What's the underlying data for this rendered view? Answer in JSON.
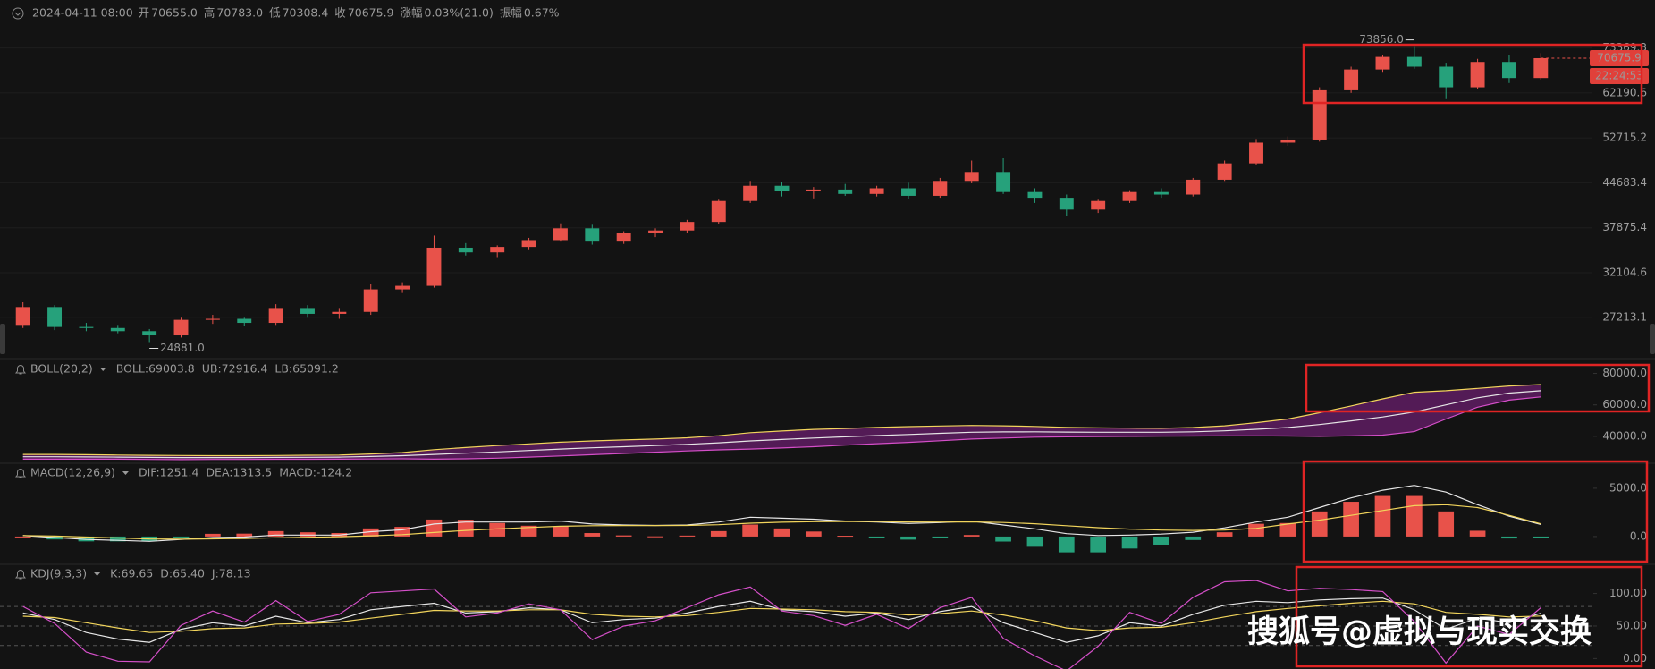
{
  "header": {
    "datetime": "2024-04-11 08:00",
    "fields": [
      {
        "label": "开",
        "value": "70655.0"
      },
      {
        "label": "高",
        "value": "70783.0"
      },
      {
        "label": "低",
        "value": "70308.4"
      },
      {
        "label": "收",
        "value": "70675.9"
      },
      {
        "label": "涨幅",
        "value": "0.03%(21.0)"
      },
      {
        "label": "振幅",
        "value": "0.67%"
      }
    ]
  },
  "watermark": "搜狐号@虚拟与现实交换",
  "chart_data": [
    {
      "type": "candlestick",
      "open": [
        26500,
        28300,
        26300,
        26200,
        25900,
        25500,
        27000,
        27100,
        26700,
        28200,
        27600,
        27800,
        30200,
        30600,
        35200,
        34600,
        35300,
        36200,
        37800,
        36000,
        37200,
        37500,
        38700,
        41800,
        44200,
        43300,
        43600,
        42900,
        43800,
        42600,
        45000,
        46500,
        43200,
        42300,
        40500,
        41800,
        43200,
        42800,
        45200,
        48000,
        51800,
        52400,
        62800,
        67800,
        71000,
        68500,
        63500,
        69700,
        65700
      ],
      "high": [
        28800,
        28500,
        26700,
        26500,
        26100,
        27300,
        27500,
        27300,
        28600,
        28500,
        28200,
        30800,
        31000,
        36800,
        35800,
        35500,
        36500,
        38500,
        38300,
        37400,
        37800,
        39000,
        42000,
        45000,
        44800,
        44000,
        44500,
        44200,
        44700,
        45500,
        48500,
        48900,
        43800,
        42800,
        42000,
        43500,
        43800,
        45500,
        48500,
        52500,
        53000,
        63500,
        68500,
        71500,
        73856,
        69500,
        70500,
        71500,
        72000
      ],
      "low": [
        26200,
        26000,
        25900,
        25700,
        24881,
        25300,
        26600,
        26400,
        26500,
        27300,
        27100,
        27500,
        29800,
        30400,
        34200,
        34000,
        35000,
        36000,
        35600,
        35700,
        36600,
        37200,
        38400,
        41500,
        42500,
        42200,
        42600,
        42500,
        42100,
        42300,
        44600,
        42900,
        41500,
        39500,
        40000,
        41500,
        42300,
        42500,
        45000,
        47800,
        51200,
        52000,
        62200,
        67000,
        68000,
        60800,
        63000,
        64500,
        65200
      ],
      "close": [
        28300,
        26300,
        26200,
        25900,
        25500,
        27000,
        27100,
        26700,
        28200,
        27600,
        27800,
        30200,
        30600,
        35200,
        34600,
        35300,
        36200,
        37800,
        36000,
        37200,
        37500,
        38700,
        41800,
        44200,
        43300,
        43600,
        42900,
        43800,
        42600,
        45000,
        46500,
        43200,
        42300,
        40500,
        41800,
        43200,
        42800,
        45200,
        48000,
        51800,
        52400,
        62800,
        67800,
        71000,
        68500,
        63500,
        69700,
        65700,
        70675.9
      ],
      "up_color": "#e8524a",
      "down_color": "#26a17b",
      "log_scale": true,
      "grid": true,
      "ylim": [
        23800,
        78000
      ],
      "yticks": [
        27213.1,
        32104.6,
        37875.4,
        44683.4,
        52715.2,
        62190.6,
        73369.3
      ],
      "annotations": [
        {
          "value": 73856,
          "label": "73856.0"
        },
        {
          "value": 24881,
          "label": "24881.0"
        }
      ],
      "last_price": 70675.9,
      "countdown": "22:24:53"
    },
    {
      "type": "band",
      "title": "BOLL(20,2)",
      "series": [
        {
          "name": "BOLL:69003.8",
          "color": "#e6e6e6",
          "values": [
            27000,
            27000,
            26900,
            26800,
            26600,
            26500,
            26500,
            26500,
            26600,
            26700,
            26800,
            27200,
            27700,
            28500,
            29300,
            30100,
            31000,
            31900,
            32700,
            33400,
            34100,
            34900,
            35900,
            37100,
            38000,
            38900,
            39700,
            40500,
            41200,
            41900,
            42600,
            42800,
            42900,
            42700,
            42600,
            42600,
            42600,
            42900,
            43500,
            44500,
            45600,
            47500,
            49800,
            52300,
            55500,
            60000,
            64500,
            67500,
            69003.8
          ]
        },
        {
          "name": "UB:72916.4",
          "color": "#f2d55c",
          "values": [
            28500,
            28500,
            28300,
            28100,
            27900,
            27800,
            27700,
            27700,
            27800,
            28000,
            28100,
            28800,
            29700,
            31500,
            32900,
            34100,
            35200,
            36300,
            37100,
            37700,
            38300,
            39100,
            40400,
            42300,
            43400,
            44400,
            45000,
            45700,
            46200,
            46600,
            46900,
            46700,
            46300,
            45700,
            45400,
            45200,
            45100,
            45600,
            46700,
            48700,
            51000,
            55000,
            59300,
            63800,
            68000,
            69000,
            70500,
            72000,
            72916.4
          ]
        },
        {
          "name": "LB:65091.2",
          "color": "#d44fc8",
          "values": [
            25500,
            25500,
            25500,
            25500,
            25300,
            25200,
            25300,
            25300,
            25400,
            25400,
            25500,
            25600,
            25700,
            25500,
            25700,
            26100,
            26800,
            27500,
            28300,
            29100,
            29900,
            30700,
            31400,
            31900,
            32600,
            33400,
            34400,
            35300,
            36200,
            37200,
            38300,
            38900,
            39500,
            39700,
            39800,
            40000,
            40100,
            40200,
            40300,
            40300,
            40200,
            40000,
            40300,
            40800,
            43000,
            51000,
            58500,
            63000,
            65091.2
          ]
        }
      ],
      "fill": "#6a1f6e",
      "ylim": [
        24000,
        86000
      ],
      "yticks": [
        {
          "value": 80000,
          "label": "80000.0"
        },
        {
          "value": 60000,
          "label": "60000.0"
        },
        {
          "value": 40000,
          "label": "40000.0"
        }
      ]
    },
    {
      "type": "macd",
      "title": "MACD(12,26,9)",
      "series": [
        {
          "name": "DIF:1251.4",
          "color": "#e6e6e6",
          "values": [
            100,
            -100,
            -300,
            -400,
            -500,
            -300,
            -100,
            -50,
            150,
            150,
            150,
            500,
            700,
            1300,
            1500,
            1500,
            1500,
            1600,
            1300,
            1200,
            1150,
            1200,
            1500,
            2000,
            1900,
            1800,
            1600,
            1500,
            1350,
            1450,
            1600,
            1200,
            800,
            300,
            100,
            150,
            250,
            450,
            900,
            1500,
            2000,
            3000,
            4000,
            4800,
            5300,
            4600,
            3300,
            2100,
            1251.4
          ]
        },
        {
          "name": "DEA:1313.5",
          "color": "#f2d55c",
          "values": [
            100,
            50,
            -50,
            -150,
            -250,
            -280,
            -240,
            -200,
            -130,
            -70,
            -30,
            80,
            200,
            420,
            630,
            800,
            940,
            1070,
            1120,
            1140,
            1140,
            1150,
            1220,
            1380,
            1480,
            1540,
            1560,
            1550,
            1510,
            1500,
            1520,
            1460,
            1330,
            1120,
            920,
            770,
            670,
            630,
            680,
            840,
            1300,
            1700,
            2200,
            2700,
            3200,
            3300,
            3000,
            2200,
            1313.5
          ]
        },
        {
          "name": "MACD:-124.2",
          "color": "#d44fc8",
          "values": [
            0,
            -300,
            -500,
            -500,
            -500,
            -40,
            280,
            300,
            560,
            440,
            360,
            840,
            1000,
            1760,
            1740,
            1400,
            1120,
            1060,
            360,
            120,
            20,
            100,
            560,
            1240,
            840,
            520,
            80,
            -100,
            -320,
            -100,
            160,
            -520,
            -1060,
            -1640,
            -1640,
            -1240,
            -840,
            -360,
            440,
            1320,
            1400,
            2600,
            3600,
            4200,
            4200,
            2600,
            600,
            -200,
            -124.2
          ]
        }
      ],
      "up_color": "#e8524a",
      "down_color": "#26a17b",
      "ylim": [
        -2600,
        7400
      ],
      "yticks": [
        {
          "value": 5000,
          "label": "5000.0"
        },
        {
          "value": 0,
          "label": "0.0"
        }
      ]
    },
    {
      "type": "kdj",
      "title": "KDJ(9,3,3)",
      "series": [
        {
          "name": "K:69.65",
          "color": "#e6e6e6",
          "values": [
            70,
            60,
            40,
            30,
            25,
            45,
            55,
            50,
            65,
            55,
            60,
            75,
            80,
            85,
            70,
            72,
            78,
            75,
            55,
            60,
            62,
            70,
            80,
            88,
            75,
            72,
            65,
            70,
            60,
            72,
            80,
            55,
            40,
            25,
            35,
            55,
            50,
            68,
            82,
            88,
            86,
            90,
            92,
            93,
            75,
            45,
            62,
            55,
            69.65
          ]
        },
        {
          "name": "D:65.40",
          "color": "#f2d55c",
          "values": [
            65,
            63,
            55,
            47,
            40,
            42,
            46,
            47,
            53,
            54,
            56,
            62,
            68,
            74,
            73,
            73,
            75,
            75,
            68,
            65,
            64,
            66,
            71,
            77,
            76,
            75,
            72,
            71,
            67,
            69,
            73,
            67,
            58,
            47,
            43,
            47,
            48,
            55,
            64,
            72,
            77,
            81,
            85,
            88,
            84,
            71,
            68,
            64,
            65.4
          ]
        },
        {
          "name": "J:78.13",
          "color": "#d44fc8",
          "values": [
            80,
            54,
            10,
            -4,
            -5,
            51,
            73,
            56,
            89,
            57,
            68,
            101,
            104,
            107,
            64,
            70,
            84,
            75,
            29,
            50,
            58,
            78,
            98,
            110,
            73,
            66,
            51,
            68,
            46,
            78,
            94,
            31,
            4,
            -19,
            19,
            71,
            54,
            94,
            118,
            120,
            104,
            108,
            106,
            103,
            57,
            -7,
            50,
            37,
            78.13
          ]
        }
      ],
      "levels": [
        20,
        50,
        80
      ],
      "ylim": [
        -16,
        142
      ],
      "yticks": [
        {
          "value": 100,
          "label": "100.00"
        },
        {
          "value": 50,
          "label": "50.00"
        },
        {
          "value": 0,
          "label": "0.00"
        }
      ]
    }
  ]
}
